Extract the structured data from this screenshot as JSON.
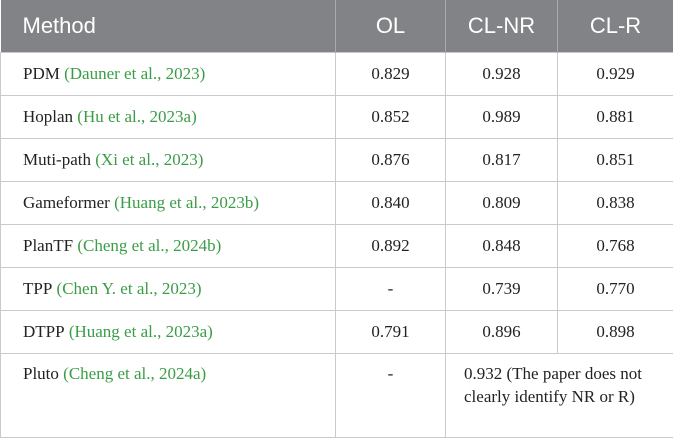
{
  "table": {
    "header": [
      "Method",
      "OL",
      "CL-NR",
      "CL-R"
    ],
    "rows": [
      {
        "method": "PDM",
        "citation": "(Dauner et al., 2023)",
        "ol": "0.829",
        "cl_nr": "0.928",
        "cl_r": "0.929"
      },
      {
        "method": "Hoplan",
        "citation": "(Hu et al., 2023a)",
        "ol": "0.852",
        "cl_nr": "0.989",
        "cl_r": "0.881"
      },
      {
        "method": "Muti-path",
        "citation": "(Xi et al., 2023)",
        "ol": "0.876",
        "cl_nr": "0.817",
        "cl_r": "0.851"
      },
      {
        "method": "Gameformer",
        "citation": "(Huang et al., 2023b)",
        "ol": "0.840",
        "cl_nr": "0.809",
        "cl_r": "0.838"
      },
      {
        "method": "PlanTF",
        "citation": "(Cheng et al., 2024b)",
        "ol": "0.892",
        "cl_nr": "0.848",
        "cl_r": "0.768"
      },
      {
        "method": "TPP",
        "citation": "(Chen Y. et al., 2023)",
        "ol": "-",
        "cl_nr": "0.739",
        "cl_r": "0.770"
      },
      {
        "method": "DTPP",
        "citation": "(Huang et al., 2023a)",
        "ol": "0.791",
        "cl_nr": "0.896",
        "cl_r": "0.898"
      },
      {
        "method": "Pluto",
        "citation": "(Cheng et al., 2024a)",
        "ol": "-",
        "cl_merged": "0.932 (The paper does not clearly identify NR or R)"
      }
    ]
  }
}
